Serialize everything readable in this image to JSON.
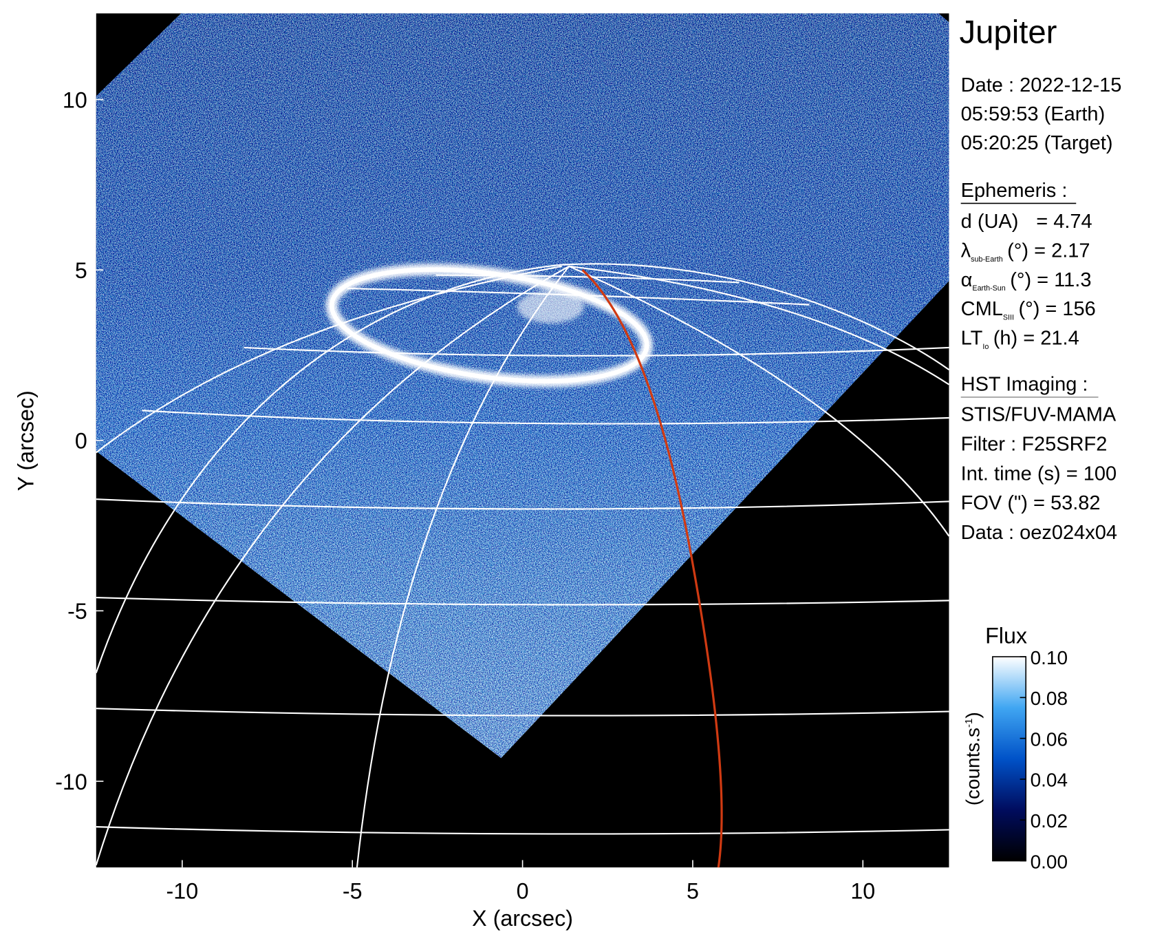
{
  "chart_data": {
    "type": "image",
    "title": "Jupiter",
    "xlabel": "X (arcsec)",
    "ylabel": "Y (arcsec)",
    "xlim": [
      -12.53,
      12.53
    ],
    "ylim": [
      -12.53,
      12.53
    ],
    "xticks": [
      -10,
      -5,
      0,
      5,
      10
    ],
    "yticks": [
      -10,
      -5,
      0,
      5,
      10
    ],
    "colorbar": {
      "label": "Flux",
      "units": [
        "(counts.s",
        "-1",
        ")"
      ],
      "clim": [
        0,
        0.1
      ],
      "ticks": [
        {
          "value": 0,
          "label": "0.00"
        },
        {
          "value": 0.02,
          "label": "0.02"
        },
        {
          "value": 0.04,
          "label": "0.04"
        },
        {
          "value": 0.06,
          "label": "0.06"
        },
        {
          "value": 0.08,
          "label": "0.08"
        },
        {
          "value": 0.1,
          "label": "0.10"
        }
      ],
      "colors": [
        "#000000",
        "#000c5e",
        "#0052c8",
        "#40a6f2",
        "#ffffff"
      ]
    }
  },
  "info": {
    "date": [
      "Date : 2022-12-15",
      "05:59:53 (Earth)",
      "05:20:25 (Target)"
    ],
    "ephemeris_title": "Ephemeris :",
    "ephemeris": [
      {
        "symbol": "d (UA)",
        "text": "= 4.74"
      },
      {
        "symbol": "λ",
        "subscript": "sub-Earth",
        "text": "(°) = 2.17"
      },
      {
        "symbol": "α",
        "subscript": "Earth-Sun",
        "text": "(°) = 11.3"
      },
      {
        "symbol": "CML",
        "subscript": "SIII",
        "text": "(°) = 156"
      },
      {
        "symbol": "LT",
        "subscript": "Io",
        "text": "(h) = 21.4"
      }
    ],
    "imaging_title": "HST Imaging :",
    "imaging": [
      "STIS/FUV-MAMA",
      "Filter : F25SRF2",
      "Int. time (s) = 100",
      "FOV (\") = 53.82",
      "Data : oez024x04"
    ]
  }
}
